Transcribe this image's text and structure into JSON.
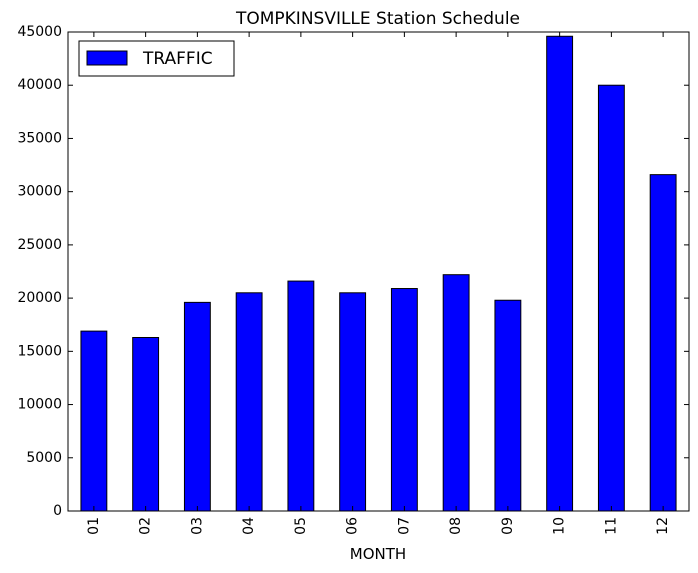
{
  "chart_data": {
    "type": "bar",
    "title": "TOMPKINSVILLE Station Schedule",
    "xlabel": "MONTH",
    "ylabel": "",
    "categories": [
      "01",
      "02",
      "03",
      "04",
      "05",
      "06",
      "07",
      "08",
      "09",
      "10",
      "11",
      "12"
    ],
    "series": [
      {
        "name": "TRAFFIC",
        "color": "#0000ff",
        "values": [
          16900,
          16300,
          19600,
          20500,
          21600,
          20500,
          20900,
          22200,
          19800,
          44600,
          40000,
          31600
        ]
      }
    ],
    "ylim": [
      0,
      45000
    ],
    "yticks": [
      "0",
      "5000",
      "10000",
      "15000",
      "20000",
      "25000",
      "30000",
      "35000",
      "40000",
      "45000"
    ],
    "grid": false,
    "legend_position": "top-left"
  }
}
